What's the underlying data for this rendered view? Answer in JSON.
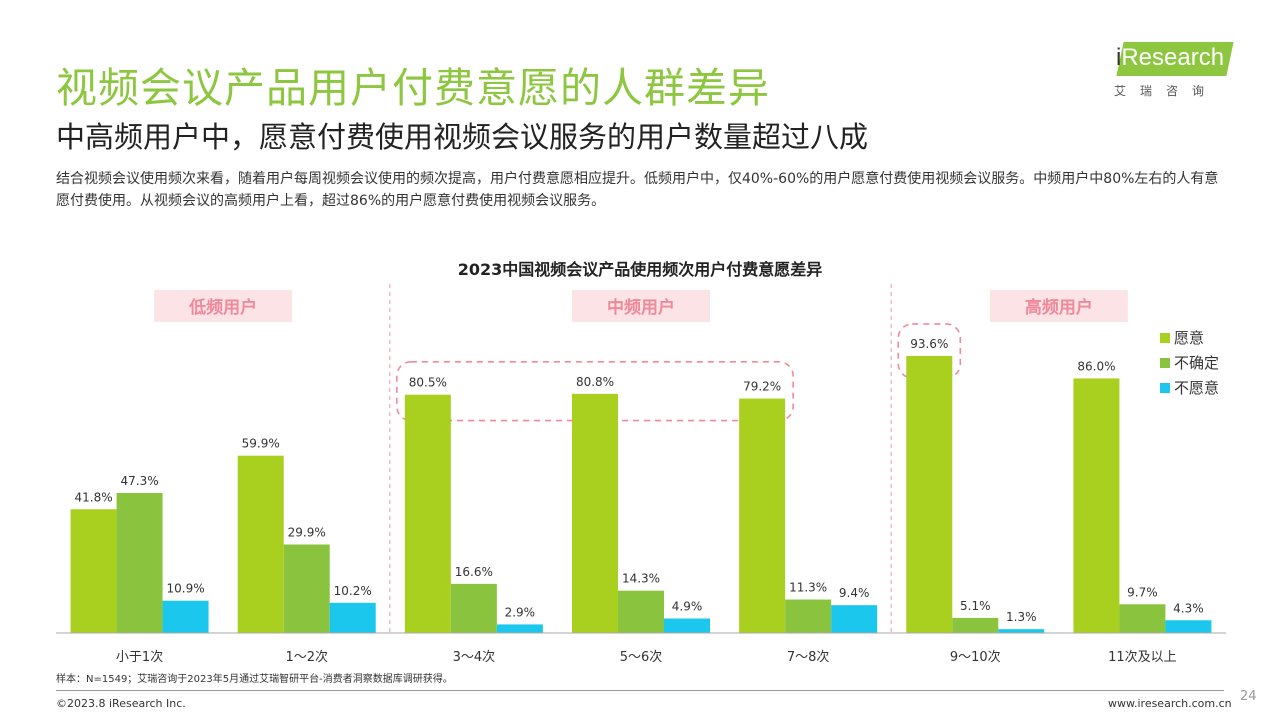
{
  "page": {
    "title": "视频会议产品用户付费意愿的人群差异",
    "subtitle": "中高频用户中，愿意付费使用视频会议服务的用户数量超过八成",
    "description": "结合视频会议使用频次来看，随着用户每周视频会议使用的频次提高，用户付费意愿相应提升。低频用户中，仅40%-60%的用户愿意付费使用视频会议服务。中频用户中80%左右的人有意愿付费使用。从视频会议的高频用户上看，超过86%的用户愿意付费使用视频会议服务。",
    "logo_text_i": "i",
    "logo_text": "Research",
    "logo_cn": "艾瑞咨询",
    "footer_note": "样本：N=1549；艾瑞咨询于2023年5月通过艾瑞智研平台-消费者洞察数据库调研获得。",
    "copyright": "©2023.8 iResearch Inc.",
    "website": "www.iresearch.com.cn",
    "page_number": "24"
  },
  "chart_data": {
    "type": "bar",
    "title": "2023中国视频会议产品使用频次用户付费意愿差异",
    "categories": [
      "小于1次",
      "1～2次",
      "3～4次",
      "5～6次",
      "7～8次",
      "9～10次",
      "11次及以上"
    ],
    "series": [
      {
        "name": "愿意",
        "color": "#a9cf1f",
        "values": [
          41.8,
          59.9,
          80.5,
          80.8,
          79.2,
          93.6,
          86.0
        ]
      },
      {
        "name": "不确定",
        "color": "#8ac43f",
        "values": [
          47.3,
          29.9,
          16.6,
          14.3,
          11.3,
          5.1,
          9.7
        ]
      },
      {
        "name": "不愿意",
        "color": "#1cc7ee",
        "values": [
          10.9,
          10.2,
          2.9,
          4.9,
          9.4,
          1.3,
          4.3
        ]
      }
    ],
    "value_labels": [
      [
        "41.8%",
        "59.9%",
        "80.5%",
        "80.8%",
        "79.2%",
        "93.6%",
        "86.0%"
      ],
      [
        "47.3%",
        "29.9%",
        "16.6%",
        "14.3%",
        "11.3%",
        "5.1%",
        "9.7%"
      ],
      [
        "10.9%",
        "10.2%",
        "2.9%",
        "4.9%",
        "9.4%",
        "1.3%",
        "4.3%"
      ]
    ],
    "groups": [
      {
        "label": "低频用户",
        "categories": [
          0,
          1
        ]
      },
      {
        "label": "中频用户",
        "categories": [
          2,
          3,
          4
        ]
      },
      {
        "label": "高频用户",
        "categories": [
          5,
          6
        ]
      }
    ],
    "highlight_categories": [
      [
        2,
        4
      ],
      [
        5,
        5
      ]
    ],
    "ylim": [
      0,
      100
    ],
    "legend_position": "right",
    "grid": false
  }
}
